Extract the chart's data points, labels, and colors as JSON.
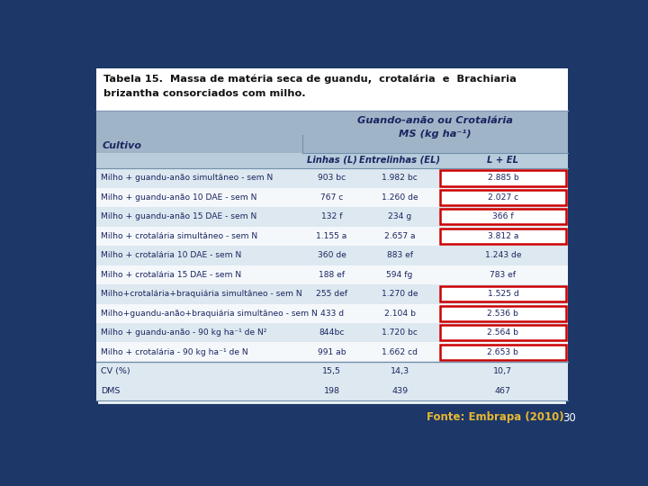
{
  "title_line1": "Tabela 15.  Massa de matéria seca de guandu,  crotalária  e  Brachiaria",
  "title_line2": "brizantha consorciados com milho.",
  "header1": "Guando-anão ou Crotalária",
  "header2": "MS (kg ha⁻¹)",
  "col_left": "Cultivo",
  "rows": [
    {
      "cultivo": "Milho + guandu-anão simultâneo - sem N",
      "L": "903 bc",
      "EL": "1.982 bc",
      "LEL": "2.885 b",
      "highlight": true
    },
    {
      "cultivo": "Milho + guandu-anão 10 DAE - sem N",
      "L": "767 c",
      "EL": "1.260 de",
      "LEL": "2.027 c",
      "highlight": true
    },
    {
      "cultivo": "Milho + guandu-anão 15 DAE - sem N",
      "L": "132 f",
      "EL": "234 g",
      "LEL": "366 f",
      "highlight": true
    },
    {
      "cultivo": "Milho + crotalária simultâneo - sem N",
      "L": "1.155 a",
      "EL": "2.657 a",
      "LEL": "3.812 a",
      "highlight": true
    },
    {
      "cultivo": "Milho + crotalária 10 DAE - sem N",
      "L": "360 de",
      "EL": "883 ef",
      "LEL": "1.243 de",
      "highlight": false
    },
    {
      "cultivo": "Milho + crotalária 15 DAE - sem N",
      "L": "188 ef",
      "EL": "594 fg",
      "LEL": "783 ef",
      "highlight": false
    },
    {
      "cultivo": "Milho+crotalária+braquiária simultâneo - sem N",
      "L": "255 def",
      "EL": "1.270 de",
      "LEL": "1.525 d",
      "highlight": true
    },
    {
      "cultivo": "Milho+guandu-anão+braquiária simultâneo - sem N",
      "L": "433 d",
      "EL": "2.104 b",
      "LEL": "2.536 b",
      "highlight": true
    },
    {
      "cultivo": "Milho + guandu-anão - 90 kg ha⁻¹ de N²",
      "L": "844bc",
      "EL": "1.720 bc",
      "LEL": "2.564 b",
      "highlight": true
    },
    {
      "cultivo": "Milho + crotalária - 90 kg ha⁻¹ de N",
      "L": "991 ab",
      "EL": "1.662 cd",
      "LEL": "2.653 b",
      "highlight": true
    }
  ],
  "footer_rows": [
    {
      "cultivo": "CV (%)",
      "L": "15,5",
      "EL": "14,3",
      "LEL": "10,7"
    },
    {
      "cultivo": "DMS",
      "L": "198",
      "EL": "439",
      "LEL": "467"
    }
  ],
  "fonte": "Fonte: Embrapa (2010)",
  "page": "30",
  "bg_outer": "#1c3768",
  "bg_inner": "#eef2f7",
  "header_bg": "#a0b4c8",
  "subheader_bg": "#b8ccdc",
  "row_bg_light": "#dde8f0",
  "row_bg_white": "#f5f8fb",
  "footer_bg": "#dde8f0",
  "highlight_color": "#cc0000",
  "text_dark": "#1a2560",
  "fonte_color": "#e8b832"
}
